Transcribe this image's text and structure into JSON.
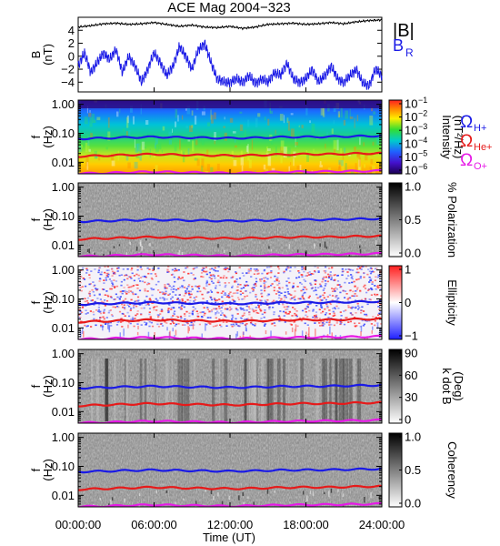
{
  "chart_data": {
    "type": "heatmap",
    "title": "ACE Mag 2004−323",
    "xlabel": "Time (UT)",
    "x_ticks": [
      "00:00:00",
      "06:00:00",
      "12:00:00",
      "18:00:00",
      "24:00:00"
    ],
    "x_tick_hours": [
      0,
      6,
      12,
      18,
      24
    ],
    "xlim_hours": [
      0,
      24
    ],
    "b_panel": {
      "ylabel": "B",
      "yunit": "(nT)",
      "yticks": [
        "4",
        "2",
        "0",
        "−2",
        "−4"
      ],
      "ytick_values": [
        4,
        2,
        0,
        -2,
        -4
      ],
      "ylim": [
        -5.5,
        6
      ],
      "series": [
        {
          "name": "|B|",
          "color": "#000000",
          "t": [
            0,
            1,
            2,
            3,
            4,
            5,
            6,
            7,
            8,
            9,
            10,
            11,
            12,
            13,
            14,
            15,
            16,
            17,
            18,
            19,
            20,
            21,
            22,
            23,
            24
          ],
          "values": [
            4.5,
            4.7,
            5.0,
            5.1,
            4.9,
            5.0,
            5.2,
            4.9,
            4.6,
            4.8,
            4.5,
            4.4,
            4.6,
            4.3,
            4.5,
            4.9,
            5.0,
            5.1,
            4.9,
            5.0,
            5.2,
            5.0,
            5.3,
            5.5,
            5.6
          ]
        },
        {
          "name": "B",
          "sub": "R",
          "color": "#1a1ae6",
          "t": [
            0,
            0.5,
            1,
            1.5,
            2,
            2.5,
            3,
            3.5,
            4,
            4.5,
            5,
            5.5,
            6,
            6.5,
            7,
            7.5,
            8,
            8.5,
            9,
            9.5,
            10,
            10.5,
            11,
            11.5,
            12,
            12.5,
            13,
            13.5,
            14,
            14.5,
            15,
            15.5,
            16,
            16.5,
            17,
            17.5,
            18,
            18.5,
            19,
            19.5,
            20,
            20.5,
            21,
            21.5,
            22,
            22.5,
            23,
            23.5,
            24
          ],
          "values": [
            -1.5,
            0.5,
            -2.5,
            -1.0,
            0.5,
            -0.5,
            1.0,
            -2.5,
            0.0,
            -1.5,
            -4.0,
            -2.0,
            0.5,
            -1.0,
            -3.0,
            -1.5,
            1.5,
            0.0,
            -2.0,
            1.0,
            2.0,
            -1.0,
            -3.5,
            -4.0,
            -4.0,
            -3.5,
            -4.0,
            -3.0,
            -4.2,
            -3.5,
            -4.0,
            -2.5,
            -3.0,
            -1.0,
            -3.5,
            -4.0,
            -3.5,
            -2.0,
            -4.0,
            -3.0,
            -1.5,
            -3.5,
            -4.0,
            -3.0,
            -2.0,
            -4.2,
            -4.5,
            -2.0,
            -3.0
          ]
        }
      ]
    },
    "spectral_panels": [
      {
        "key": "intensity",
        "palette": "rainbow",
        "ylabel": "f",
        "yunit": "(Hz)",
        "yticks": [
          "1.00",
          "0.10",
          "0.01"
        ],
        "ytick_values": [
          1.0,
          0.1,
          0.01
        ],
        "colorbar_label": "Intensity",
        "colorbar_unit": "(nT²/Hz)",
        "colorbar_ticks": [
          "10",
          "10",
          "10",
          "10",
          "10",
          "10"
        ],
        "colorbar_exponents": [
          "−1",
          "−2",
          "−3",
          "−4",
          "−5",
          "−6"
        ]
      },
      {
        "key": "polarization",
        "palette": "gray",
        "ylabel": "f",
        "yunit": "(Hz)",
        "yticks": [
          "1.00",
          "0.10",
          "0.01"
        ],
        "ytick_values": [
          1.0,
          0.1,
          0.01
        ],
        "colorbar_label": "% Polarization",
        "colorbar_unit": "",
        "colorbar_ticks": [
          "1.0",
          "0.5",
          "0.0"
        ],
        "colorbar_exponents": []
      },
      {
        "key": "ellipticity",
        "palette": "bwr",
        "ylabel": "f",
        "yunit": "(Hz)",
        "yticks": [
          "1.00",
          "0.10",
          "0.01"
        ],
        "ytick_values": [
          1.0,
          0.1,
          0.01
        ],
        "colorbar_label": "Ellipticity",
        "colorbar_unit": "",
        "colorbar_ticks": [
          "1",
          "0",
          "−1"
        ],
        "colorbar_exponents": []
      },
      {
        "key": "kdotb",
        "palette": "gray",
        "ylabel": "f",
        "yunit": "(Hz)",
        "yticks": [
          "1.00",
          "0.10",
          "0.01"
        ],
        "ytick_values": [
          1.0,
          0.1,
          0.01
        ],
        "colorbar_label": "k dot B",
        "colorbar_unit": "(Deg)",
        "colorbar_ticks": [
          "90",
          "60",
          "30",
          "0"
        ],
        "colorbar_exponents": []
      },
      {
        "key": "coherency",
        "palette": "gray",
        "ylabel": "f",
        "yunit": "(Hz)",
        "yticks": [
          "1.00",
          "0.10",
          "0.01"
        ],
        "ytick_values": [
          1.0,
          0.1,
          0.01
        ],
        "colorbar_label": "Coherency",
        "colorbar_unit": "",
        "colorbar_ticks": [
          "1.0",
          "0.5",
          "0.0"
        ],
        "colorbar_exponents": []
      }
    ],
    "gyrofrequency_lines": [
      {
        "name": "Ω",
        "sub": "H+",
        "color": "#1a1ae6",
        "t": [
          0,
          2,
          4,
          6,
          8,
          10,
          12,
          14,
          16,
          18,
          20,
          22,
          24
        ],
        "f_hz": [
          0.065,
          0.068,
          0.072,
          0.075,
          0.072,
          0.07,
          0.068,
          0.07,
          0.074,
          0.075,
          0.076,
          0.079,
          0.082
        ]
      },
      {
        "name": "Ω",
        "sub": "He+",
        "color": "#e61a1a",
        "t": [
          0,
          2,
          4,
          6,
          8,
          10,
          12,
          14,
          16,
          18,
          20,
          22,
          24
        ],
        "f_hz": [
          0.016,
          0.017,
          0.018,
          0.019,
          0.018,
          0.0175,
          0.017,
          0.0175,
          0.0185,
          0.019,
          0.019,
          0.02,
          0.0205
        ]
      },
      {
        "name": "Ω",
        "sub": "O+",
        "color": "#e61ae6",
        "t": [
          0,
          2,
          4,
          6,
          8,
          10,
          12,
          14,
          16,
          18,
          20,
          22,
          24
        ],
        "f_hz": [
          0.0041,
          0.0042,
          0.0045,
          0.0047,
          0.0045,
          0.0044,
          0.0042,
          0.0044,
          0.0046,
          0.0047,
          0.0048,
          0.0049,
          0.0051
        ]
      }
    ],
    "flim_hz": [
      0.004,
      1.4
    ]
  }
}
